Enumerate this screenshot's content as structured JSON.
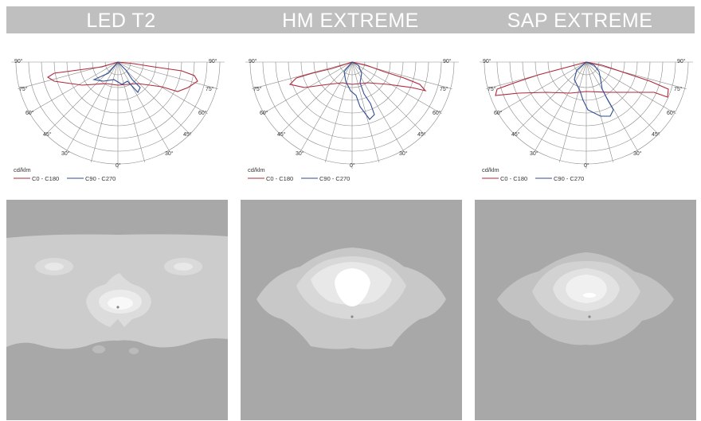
{
  "panels": [
    {
      "title": "LED T2",
      "polar": {
        "unit_label": "cd/klm",
        "angle_labels": [
          "90°",
          "90°",
          "75°",
          "75°",
          "60°",
          "60°",
          "45°",
          "45°",
          "30°",
          "30°",
          "0°"
        ],
        "legend": [
          {
            "label": "C0 - C180",
            "color": "#b0283a"
          },
          {
            "label": "C90 - C270",
            "color": "#2f4b93"
          }
        ]
      }
    },
    {
      "title": "HM EXTREME",
      "polar": {
        "unit_label": "cd/klm",
        "angle_labels": [
          "90°",
          "90°",
          "75°",
          "75°",
          "60°",
          "60°",
          "45°",
          "45°",
          "30°",
          "30°",
          "0°"
        ],
        "legend": [
          {
            "label": "C0 - C180",
            "color": "#b0283a"
          },
          {
            "label": "C90 - C270",
            "color": "#2f4b93"
          }
        ]
      }
    },
    {
      "title": "SAP EXTREME",
      "polar": {
        "unit_label": "cd/klm",
        "angle_labels": [
          "90°",
          "90°",
          "75°",
          "75°",
          "60°",
          "60°",
          "45°",
          "45°",
          "30°",
          "30°",
          "0°"
        ],
        "legend": [
          {
            "label": "C0 - C180",
            "color": "#b0283a"
          },
          {
            "label": "C90 - C270",
            "color": "#2f4b93"
          }
        ]
      }
    }
  ],
  "colors": {
    "header_bar": "#bfbfbf",
    "header_text": "#ffffff",
    "grid": "#8a8a8a",
    "iso_background": "#a8a8a8"
  }
}
